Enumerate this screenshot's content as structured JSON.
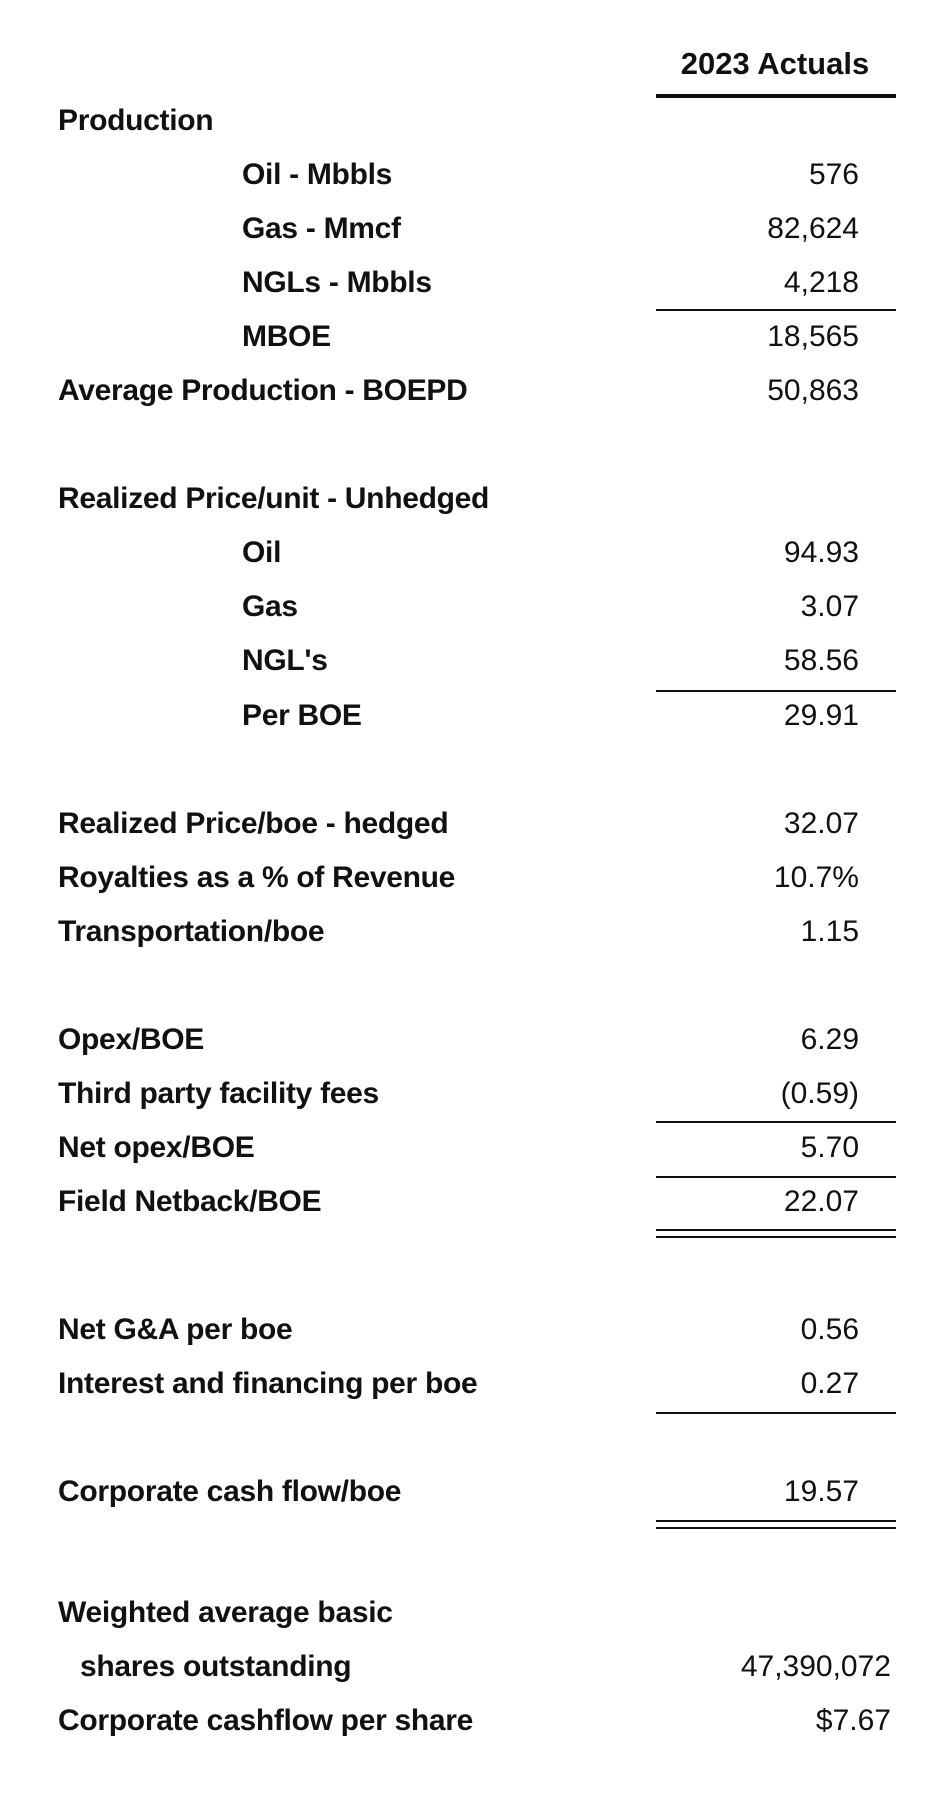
{
  "header": {
    "column_title": "2023 Actuals"
  },
  "sections": {
    "production": {
      "title": "Production",
      "oil_label": "Oil - Mbbls",
      "oil_value": "576",
      "gas_label": "Gas - Mmcf",
      "gas_value": "82,624",
      "ngl_label": "NGLs - Mbbls",
      "ngl_value": "4,218",
      "mboe_label": "MBOE",
      "mboe_value": "18,565",
      "avg_label": "Average Production - BOEPD",
      "avg_value": "50,863"
    },
    "unhedged": {
      "title": "Realized Price/unit - Unhedged",
      "oil_label": "Oil",
      "oil_value": "94.93",
      "gas_label": "Gas",
      "gas_value": "3.07",
      "ngl_label": "NGL's",
      "ngl_value": "58.56",
      "boe_label": "Per BOE",
      "boe_value": "29.91"
    },
    "pricing": {
      "hedged_label": "Realized Price/boe - hedged",
      "hedged_value": "32.07",
      "royalties_label": "Royalties as a % of Revenue",
      "royalties_value": "10.7%",
      "transport_label": "Transportation/boe",
      "transport_value": "1.15"
    },
    "opex": {
      "opex_label": "Opex/BOE",
      "opex_value": "6.29",
      "fees_label": "Third party facility fees",
      "fees_value": "(0.59)",
      "net_label": "Net opex/BOE",
      "net_value": "5.70",
      "netback_label": "Field Netback/BOE",
      "netback_value": "22.07"
    },
    "corporate": {
      "ga_label": "Net G&A per boe",
      "ga_value": "0.56",
      "interest_label": "Interest and financing per boe",
      "interest_value": "0.27",
      "cashflow_label": "Corporate cash flow/boe",
      "cashflow_value": "19.57"
    },
    "shares": {
      "wavg_label_line1": "Weighted average basic",
      "wavg_label_line2": "shares outstanding",
      "wavg_value": "47,390,072",
      "cfps_label": "Corporate cashflow per share",
      "cfps_value": "$7.67"
    }
  }
}
